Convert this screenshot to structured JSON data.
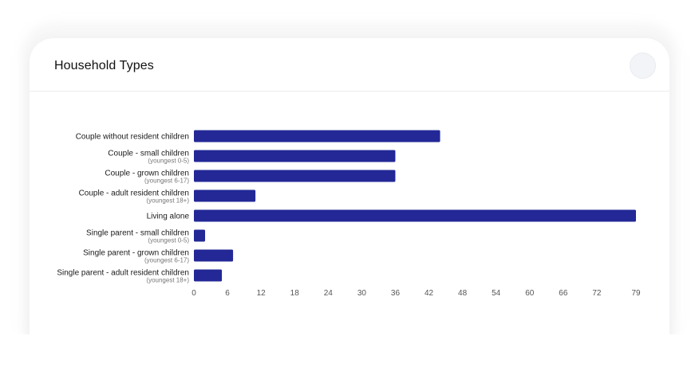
{
  "card": {
    "title": "Household Types"
  },
  "colors": {
    "bar": "#232896",
    "card_background": "#ffffff",
    "menu_button": "#f2f4f7"
  },
  "icons": {
    "menu": "circle-menu-icon"
  },
  "chart_data": {
    "type": "bar",
    "orientation": "horizontal",
    "title": "Household Types",
    "categories": [
      "Couple without resident children",
      "Couple - small children",
      "Couple - grown children",
      "Couple - adult resident children",
      "Living alone",
      "Single parent - small children",
      "Single parent - grown children",
      "Single parent - adult resident children"
    ],
    "subcategories": [
      "",
      "(youngest 0-5)",
      "(youngest 6-17)",
      "(youngest 18+)",
      "",
      "(youngest 0-5)",
      "(youngest 6-17)",
      "(youngest 18+)"
    ],
    "values": [
      44,
      36,
      36,
      11,
      79,
      2,
      7,
      5
    ],
    "ticks": [
      0,
      6,
      12,
      18,
      24,
      30,
      36,
      42,
      48,
      54,
      60,
      66,
      72,
      79
    ],
    "xlim": [
      0,
      79
    ],
    "grid": false,
    "legend": "none"
  }
}
